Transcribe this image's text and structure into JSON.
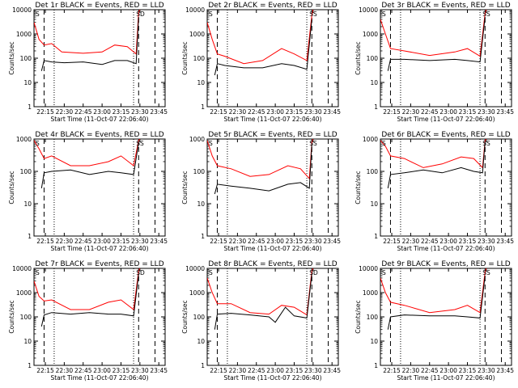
{
  "chart_data": [
    {
      "type": "line",
      "title": "Det 1r BLACK = Events, RED = LLD",
      "xlabel": "Start Time (11-Oct-07 22:06:40)",
      "ylabel": "Counts/sec",
      "x_range": [
        "22:06",
        "23:50"
      ],
      "yscale": "log",
      "ylim": [
        1,
        10000
      ],
      "xticks": [
        "22:15",
        "22:30",
        "22:45",
        "23:00",
        "23:15",
        "23:30",
        "23:45"
      ],
      "yticks": [
        "1",
        "10",
        "100",
        "1000",
        "10000"
      ],
      "series_colors": {
        "events": "#000000",
        "lld": "#ff0000"
      },
      "event_markers": [
        "S",
        "D"
      ],
      "dashed_lines": [
        "22:14",
        "23:29",
        "23:42"
      ],
      "dotted_lines": [
        "22:22",
        "23:25"
      ],
      "series": [
        {
          "role": "lld",
          "times": [
            "22:06",
            "22:10",
            "22:14",
            "22:20",
            "22:28",
            "22:45",
            "23:00",
            "23:10",
            "23:20",
            "23:27",
            "23:29",
            "23:30"
          ],
          "values": [
            3000,
            600,
            350,
            400,
            180,
            160,
            180,
            350,
            300,
            150,
            8000,
            10000
          ]
        },
        {
          "role": "events",
          "times": [
            "22:12",
            "22:14",
            "22:20",
            "22:30",
            "22:45",
            "23:00",
            "23:10",
            "23:20",
            "23:27",
            "23:29"
          ],
          "values": [
            30,
            80,
            70,
            65,
            70,
            55,
            80,
            80,
            60,
            5000
          ]
        }
      ]
    },
    {
      "type": "line",
      "title": "Det 2r BLACK = Events, RED = LLD",
      "xlabel": "Start Time (11-Oct-07 22:06:40)",
      "ylabel": "Counts/sec",
      "x_range": [
        "22:06",
        "23:50"
      ],
      "yscale": "log",
      "ylim": [
        1,
        10000
      ],
      "xticks": [
        "22:15",
        "22:30",
        "22:45",
        "23:00",
        "23:15",
        "23:30",
        "23:45"
      ],
      "yticks": [
        "1",
        "10",
        "100",
        "1000",
        "10000"
      ],
      "series_colors": {
        "events": "#000000",
        "lld": "#ff0000"
      },
      "event_markers": [
        "S",
        "S"
      ],
      "dashed_lines": [
        "22:14",
        "23:29",
        "23:42"
      ],
      "dotted_lines": [
        "22:22",
        "23:25"
      ],
      "series": [
        {
          "role": "lld",
          "times": [
            "22:06",
            "22:10",
            "22:14",
            "22:20",
            "22:35",
            "22:50",
            "23:05",
            "23:15",
            "23:25",
            "23:29",
            "23:30"
          ],
          "values": [
            3000,
            600,
            150,
            120,
            60,
            80,
            250,
            150,
            80,
            6000,
            10000
          ]
        },
        {
          "role": "events",
          "times": [
            "22:12",
            "22:14",
            "22:20",
            "22:35",
            "22:50",
            "23:05",
            "23:15",
            "23:25",
            "23:29"
          ],
          "values": [
            20,
            60,
            50,
            40,
            40,
            60,
            50,
            35,
            4000
          ]
        }
      ]
    },
    {
      "type": "line",
      "title": "Det 3r BLACK = Events, RED = LLD",
      "xlabel": "Start Time (11-Oct-07 22:06:40)",
      "ylabel": "Counts/sec",
      "x_range": [
        "22:06",
        "23:50"
      ],
      "yscale": "log",
      "ylim": [
        1,
        10000
      ],
      "xticks": [
        "22:15",
        "22:30",
        "22:45",
        "23:00",
        "23:15",
        "23:30",
        "23:45"
      ],
      "yticks": [
        "1",
        "10",
        "100",
        "1000",
        "10000"
      ],
      "series_colors": {
        "events": "#000000",
        "lld": "#ff0000"
      },
      "event_markers": [
        "S",
        "S"
      ],
      "dashed_lines": [
        "22:14",
        "23:29",
        "23:42"
      ],
      "dotted_lines": [
        "22:22",
        "23:25"
      ],
      "series": [
        {
          "role": "lld",
          "times": [
            "22:06",
            "22:10",
            "22:14",
            "22:25",
            "22:45",
            "23:05",
            "23:15",
            "23:25",
            "23:29",
            "23:30"
          ],
          "values": [
            4000,
            1000,
            250,
            200,
            130,
            180,
            250,
            120,
            7000,
            10000
          ]
        },
        {
          "role": "events",
          "times": [
            "22:12",
            "22:14",
            "22:25",
            "22:45",
            "23:05",
            "23:15",
            "23:25",
            "23:29"
          ],
          "values": [
            30,
            90,
            90,
            80,
            90,
            80,
            70,
            5000
          ]
        }
      ]
    },
    {
      "type": "line",
      "title": "Det 4r BLACK = Events, RED = LLD",
      "xlabel": "Start Time (11-Oct-07 22:06:40)",
      "ylabel": "Counts/sec",
      "x_range": [
        "22:06",
        "23:50"
      ],
      "yscale": "log",
      "ylim": [
        1,
        1000
      ],
      "xticks": [
        "22:15",
        "22:30",
        "22:45",
        "23:00",
        "23:15",
        "23:30",
        "23:45"
      ],
      "yticks": [
        "1",
        "10",
        "100",
        "1000"
      ],
      "series_colors": {
        "events": "#000000",
        "lld": "#ff0000"
      },
      "event_markers": [
        "S",
        "S"
      ],
      "dashed_lines": [
        "22:14",
        "23:29",
        "23:42"
      ],
      "dotted_lines": [
        "22:22",
        "23:25"
      ],
      "series": [
        {
          "role": "lld",
          "times": [
            "22:06",
            "22:10",
            "22:14",
            "22:20",
            "22:35",
            "22:50",
            "23:05",
            "23:15",
            "23:25",
            "23:29",
            "23:30"
          ],
          "values": [
            900,
            500,
            250,
            300,
            150,
            150,
            200,
            300,
            150,
            900,
            1000
          ]
        },
        {
          "role": "events",
          "times": [
            "22:12",
            "22:14",
            "22:20",
            "22:35",
            "22:50",
            "23:05",
            "23:15",
            "23:25",
            "23:29"
          ],
          "values": [
            30,
            90,
            100,
            110,
            80,
            100,
            90,
            80,
            800
          ]
        }
      ]
    },
    {
      "type": "line",
      "title": "Det 5r BLACK = Events, RED = LLD",
      "xlabel": "Start Time (11-Oct-07 22:06:40)",
      "ylabel": "Counts/sec",
      "x_range": [
        "22:06",
        "23:50"
      ],
      "yscale": "log",
      "ylim": [
        1,
        1000
      ],
      "xticks": [
        "22:15",
        "22:30",
        "22:45",
        "23:00",
        "23:15",
        "23:30",
        "23:45"
      ],
      "yticks": [
        "1",
        "10",
        "100",
        "1000"
      ],
      "series_colors": {
        "events": "#000000",
        "lld": "#ff0000"
      },
      "event_markers": [
        "S",
        "S"
      ],
      "dashed_lines": [
        "22:14",
        "23:29",
        "23:42"
      ],
      "dotted_lines": [
        "22:22",
        "23:25"
      ],
      "series": [
        {
          "role": "lld",
          "times": [
            "22:06",
            "22:10",
            "22:14",
            "22:25",
            "22:40",
            "22:55",
            "23:10",
            "23:20",
            "23:27",
            "23:29",
            "23:30"
          ],
          "values": [
            900,
            300,
            150,
            120,
            70,
            80,
            150,
            120,
            60,
            800,
            1000
          ]
        },
        {
          "role": "events",
          "times": [
            "22:12",
            "22:14",
            "22:25",
            "22:40",
            "22:55",
            "23:10",
            "23:20",
            "23:27",
            "23:29"
          ],
          "values": [
            20,
            40,
            35,
            30,
            25,
            40,
            45,
            30,
            700
          ]
        }
      ]
    },
    {
      "type": "line",
      "title": "Det 6r BLACK = Events, RED = LLD",
      "xlabel": "Start Time (11-Oct-07 22:06:40)",
      "ylabel": "Counts/sec",
      "x_range": [
        "22:06",
        "23:50"
      ],
      "yscale": "log",
      "ylim": [
        1,
        1000
      ],
      "xticks": [
        "22:15",
        "22:30",
        "22:45",
        "23:00",
        "23:15",
        "23:30",
        "23:45"
      ],
      "yticks": [
        "1",
        "10",
        "100",
        "1000"
      ],
      "series_colors": {
        "events": "#000000",
        "lld": "#ff0000"
      },
      "event_markers": [
        "S",
        "S"
      ],
      "dashed_lines": [
        "22:14",
        "23:29",
        "23:42"
      ],
      "dotted_lines": [
        "22:22",
        "23:25"
      ],
      "series": [
        {
          "role": "lld",
          "times": [
            "22:06",
            "22:10",
            "22:14",
            "22:25",
            "22:40",
            "22:55",
            "23:10",
            "23:20",
            "23:27",
            "23:29",
            "23:30"
          ],
          "values": [
            900,
            600,
            300,
            250,
            130,
            170,
            280,
            250,
            130,
            900,
            1000
          ]
        },
        {
          "role": "events",
          "times": [
            "22:12",
            "22:14",
            "22:25",
            "22:40",
            "22:55",
            "23:10",
            "23:20",
            "23:27",
            "23:29"
          ],
          "values": [
            30,
            80,
            90,
            110,
            90,
            130,
            100,
            90,
            800
          ]
        }
      ]
    },
    {
      "type": "line",
      "title": "Det 7r BLACK = Events, RED = LLD",
      "xlabel": "Start Time (11-Oct-07 22:06:40)",
      "ylabel": "Counts/sec",
      "x_range": [
        "22:06",
        "23:50"
      ],
      "yscale": "log",
      "ylim": [
        1,
        10000
      ],
      "xticks": [
        "22:15",
        "22:30",
        "22:45",
        "23:00",
        "23:15",
        "23:30",
        "23:45"
      ],
      "yticks": [
        "1",
        "10",
        "100",
        "1000",
        "10000"
      ],
      "series_colors": {
        "events": "#000000",
        "lld": "#ff0000"
      },
      "event_markers": [
        "S",
        "D"
      ],
      "dashed_lines": [
        "22:14",
        "23:29",
        "23:42"
      ],
      "dotted_lines": [
        "22:22",
        "23:25"
      ],
      "series": [
        {
          "role": "lld",
          "times": [
            "22:06",
            "22:10",
            "22:14",
            "22:20",
            "22:35",
            "22:50",
            "23:05",
            "23:15",
            "23:25",
            "23:29",
            "23:30"
          ],
          "values": [
            3000,
            700,
            450,
            500,
            200,
            200,
            400,
            500,
            200,
            8000,
            10000
          ]
        },
        {
          "role": "events",
          "times": [
            "22:12",
            "22:14",
            "22:20",
            "22:35",
            "22:50",
            "23:05",
            "23:15",
            "23:25",
            "23:29"
          ],
          "values": [
            40,
            120,
            150,
            130,
            150,
            130,
            130,
            110,
            6000
          ]
        }
      ]
    },
    {
      "type": "line",
      "title": "Det 8r BLACK = Events, RED = LLD",
      "xlabel": "Start Time (11-Oct-07 22:06:40)",
      "ylabel": "Counts/sec",
      "x_range": [
        "22:06",
        "23:50"
      ],
      "yscale": "log",
      "ylim": [
        1,
        10000
      ],
      "xticks": [
        "22:15",
        "22:30",
        "22:45",
        "23:00",
        "23:15",
        "23:30",
        "23:45"
      ],
      "yticks": [
        "1",
        "10",
        "100",
        "1000",
        "10000"
      ],
      "series_colors": {
        "events": "#000000",
        "lld": "#ff0000"
      },
      "event_markers": [
        "S",
        "D"
      ],
      "dashed_lines": [
        "22:14",
        "23:29",
        "23:42"
      ],
      "dotted_lines": [
        "22:22",
        "23:25"
      ],
      "series": [
        {
          "role": "lld",
          "times": [
            "22:06",
            "22:10",
            "22:14",
            "22:25",
            "22:40",
            "22:55",
            "23:05",
            "23:15",
            "23:25",
            "23:29",
            "23:30"
          ],
          "values": [
            4000,
            1000,
            350,
            350,
            150,
            130,
            300,
            250,
            120,
            8000,
            10000
          ]
        },
        {
          "role": "events",
          "times": [
            "22:12",
            "22:14",
            "22:25",
            "22:40",
            "22:55",
            "23:00",
            "23:08",
            "23:15",
            "23:25",
            "23:29"
          ],
          "values": [
            30,
            130,
            140,
            120,
            100,
            60,
            250,
            110,
            90,
            6000
          ]
        }
      ]
    },
    {
      "type": "line",
      "title": "Det 9r BLACK = Events, RED = LLD",
      "xlabel": "Start Time (11-Oct-07 22:06:40)",
      "ylabel": "Counts/sec",
      "x_range": [
        "22:06",
        "23:50"
      ],
      "yscale": "log",
      "ylim": [
        1,
        10000
      ],
      "xticks": [
        "22:15",
        "22:30",
        "22:45",
        "23:00",
        "23:15",
        "23:30",
        "23:45"
      ],
      "yticks": [
        "1",
        "10",
        "100",
        "1000",
        "10000"
      ],
      "series_colors": {
        "events": "#000000",
        "lld": "#ff0000"
      },
      "event_markers": [
        "S",
        "S"
      ],
      "dashed_lines": [
        "22:14",
        "23:29",
        "23:42"
      ],
      "dotted_lines": [
        "22:22",
        "23:25"
      ],
      "series": [
        {
          "role": "lld",
          "times": [
            "22:06",
            "22:10",
            "22:14",
            "22:25",
            "22:45",
            "23:05",
            "23:15",
            "23:25",
            "23:29",
            "23:30"
          ],
          "values": [
            4000,
            1000,
            400,
            300,
            150,
            200,
            300,
            150,
            7000,
            10000
          ]
        },
        {
          "role": "events",
          "times": [
            "22:12",
            "22:14",
            "22:25",
            "22:45",
            "23:05",
            "23:15",
            "23:25",
            "23:29"
          ],
          "values": [
            30,
            100,
            120,
            110,
            110,
            100,
            90,
            5000
          ]
        }
      ]
    }
  ]
}
